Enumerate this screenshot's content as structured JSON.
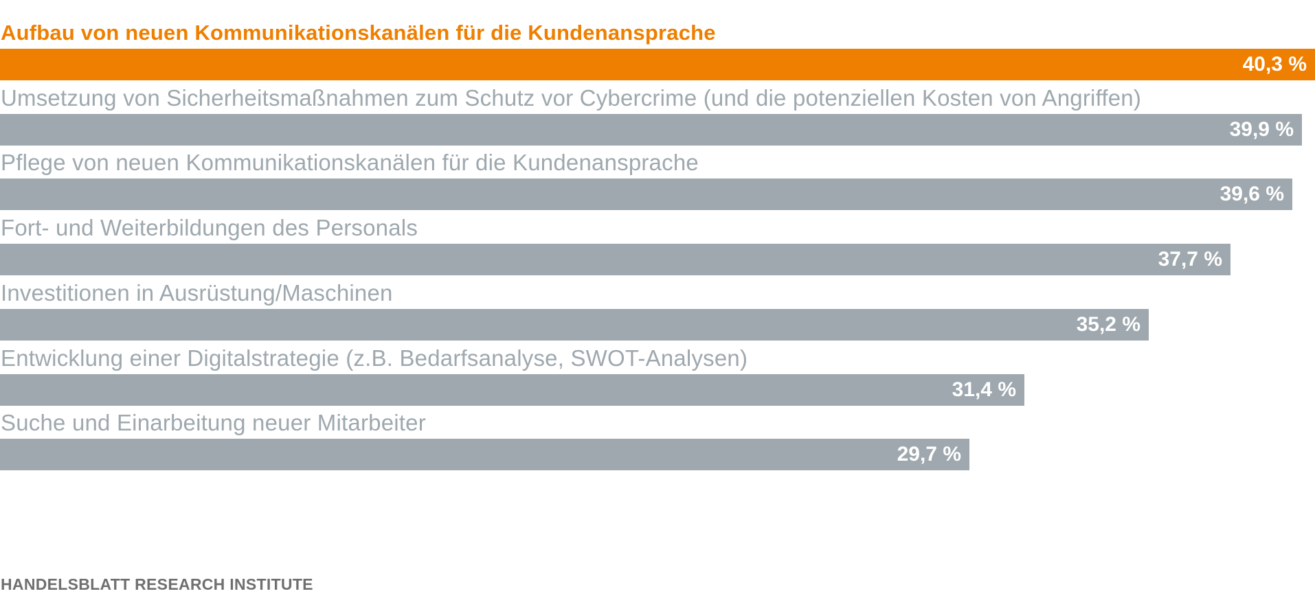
{
  "colors": {
    "highlight": "#ee7f00",
    "normal": "#9ea8ae",
    "value_text": "#ffffff",
    "source_text": "#6f6f6f"
  },
  "chart_data": {
    "type": "bar",
    "orientation": "horizontal",
    "categories": [
      "Aufbau von neuen Kommunikationskanälen für die Kundenansprache",
      "Umsetzung von Sicherheitsmaßnahmen zum Schutz vor Cybercrime (und die potenziellen Kosten von Angriffen)",
      "Pflege von neuen Kommunikationskanälen für die Kundenansprache",
      "Fort- und Weiterbildungen des Personals",
      "Investitionen in Ausrüstung/Maschinen",
      "Entwicklung einer Digitalstrategie (z.B. Bedarfsanalyse, SWOT-Analysen)",
      "Suche und Einarbeitung neuer Mitarbeiter"
    ],
    "values": [
      40.3,
      39.9,
      39.6,
      37.7,
      35.2,
      31.4,
      29.7
    ],
    "value_labels": [
      "40,3 %",
      "39,9 %",
      "39,6 %",
      "37,7 %",
      "35,2 %",
      "31,4 %",
      "29,7 %"
    ],
    "highlighted_index": 0,
    "xlim": [
      0,
      40.3
    ],
    "grid": false,
    "legend": "none"
  },
  "source": "HANDELSBLATT RESEARCH INSTITUTE"
}
